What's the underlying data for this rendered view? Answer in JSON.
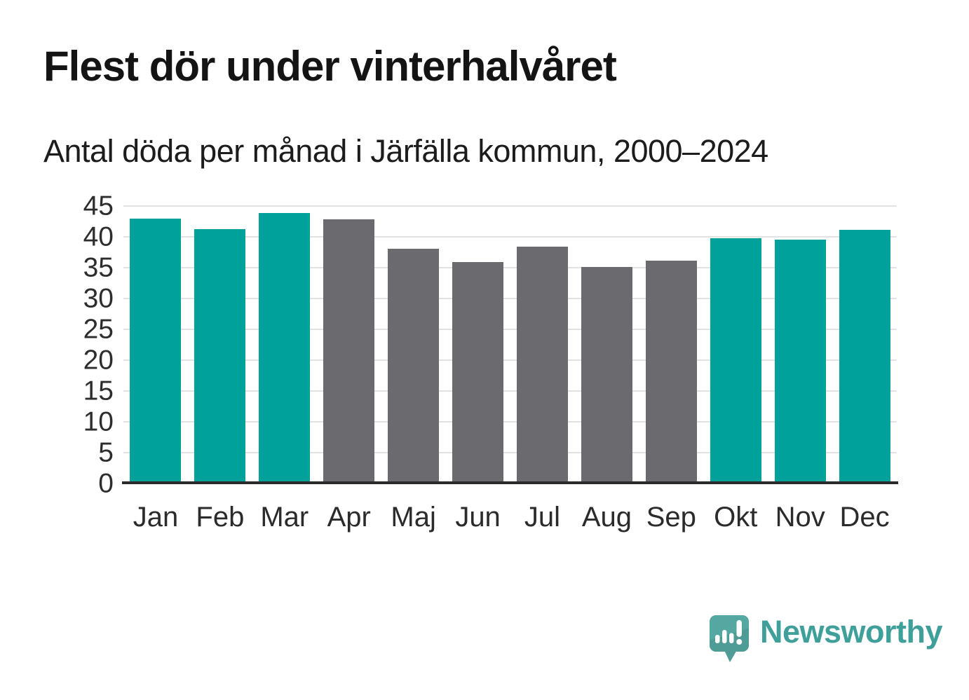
{
  "title": "Flest dör under vinterhalvåret",
  "subtitle": "Antal döda per månad i Järfälla kommun, 2000–2024",
  "branding": {
    "logo_text": "Newsworthy",
    "logo_icon": "speech-bubble-with-bar-chart-and-exclamation"
  },
  "colors": {
    "background": "#ffffff",
    "winter_bar": "#00a19a",
    "summer_bar": "#6b6b6f",
    "gridline": "#e3e3e3",
    "axis_line": "#2b2b2b",
    "title_text": "#141414",
    "tick_text": "#2d2d2d",
    "logo_bubble": "#55a7a1",
    "logo_bubble_shade": "#4a948e",
    "logo_text_color": "#3f9f9a"
  },
  "chart_data": {
    "type": "bar",
    "title": "Flest dör under vinterhalvåret",
    "subtitle": "Antal döda per månad i Järfälla kommun, 2000–2024",
    "categories": [
      "Jan",
      "Feb",
      "Mar",
      "Apr",
      "Maj",
      "Jun",
      "Jul",
      "Aug",
      "Sep",
      "Okt",
      "Nov",
      "Dec"
    ],
    "values": [
      43.0,
      41.2,
      43.9,
      42.8,
      38.1,
      35.9,
      38.4,
      35.1,
      36.1,
      39.8,
      39.5,
      41.1
    ],
    "series_note": "winter months (Jan-Mar, Okt-Dec) teal, summer months (Apr-Sep) gray",
    "bar_seasons": [
      "winter",
      "winter",
      "winter",
      "summer",
      "summer",
      "summer",
      "summer",
      "summer",
      "summer",
      "winter",
      "winter",
      "winter"
    ],
    "xlabel": "",
    "ylabel": "",
    "ylim": [
      0,
      45
    ],
    "yticks": [
      0,
      5,
      10,
      15,
      20,
      25,
      30,
      35,
      40,
      45
    ],
    "grid": "horizontal",
    "legend": "none"
  }
}
